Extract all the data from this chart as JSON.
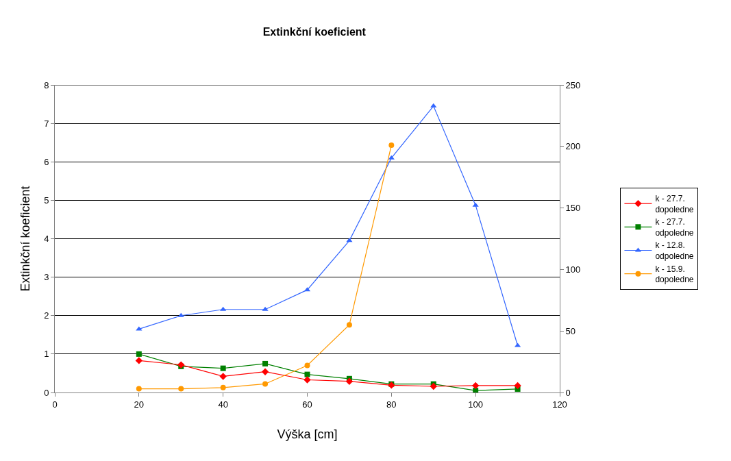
{
  "chart_data": {
    "type": "line",
    "title": "Extinkční koeficient",
    "xlabel": "Výška [cm]",
    "ylabel": "Extinkční koeficient",
    "x": [
      20,
      30,
      40,
      50,
      60,
      70,
      80,
      90,
      100,
      110
    ],
    "xlim": [
      0,
      120
    ],
    "xticks": [
      0,
      20,
      40,
      60,
      80,
      100,
      120
    ],
    "ylim": [
      0,
      8
    ],
    "yticks": [
      0,
      1,
      2,
      3,
      4,
      5,
      6,
      7,
      8
    ],
    "y2lim": [
      0,
      250
    ],
    "y2ticks": [
      0,
      50,
      100,
      150,
      200,
      250
    ],
    "grid": "y",
    "legend": "right",
    "series": [
      {
        "name": "k - 27.7. dopoledne",
        "color": "#ff0000",
        "marker": "diamond",
        "values": [
          0.83,
          0.72,
          0.42,
          0.54,
          0.33,
          0.29,
          0.19,
          0.16,
          0.18,
          0.18
        ]
      },
      {
        "name": "k - 27.7. odpoledne",
        "color": "#008000",
        "marker": "square",
        "values": [
          1.0,
          0.68,
          0.63,
          0.75,
          0.47,
          0.36,
          0.22,
          0.22,
          0.05,
          0.09
        ]
      },
      {
        "name": "k - 12.8. odpoledne",
        "color": "#3366ff",
        "marker": "triangle",
        "values": [
          1.65,
          2.0,
          2.16,
          2.16,
          2.67,
          3.95,
          6.1,
          7.45,
          4.87,
          1.22
        ]
      },
      {
        "name": "k - 15.9. dopoledne",
        "color": "#ff9900",
        "marker": "circle",
        "axis": "y2",
        "values": [
          3,
          3,
          4,
          7,
          22,
          55,
          201,
          null,
          null,
          null
        ]
      }
    ]
  }
}
